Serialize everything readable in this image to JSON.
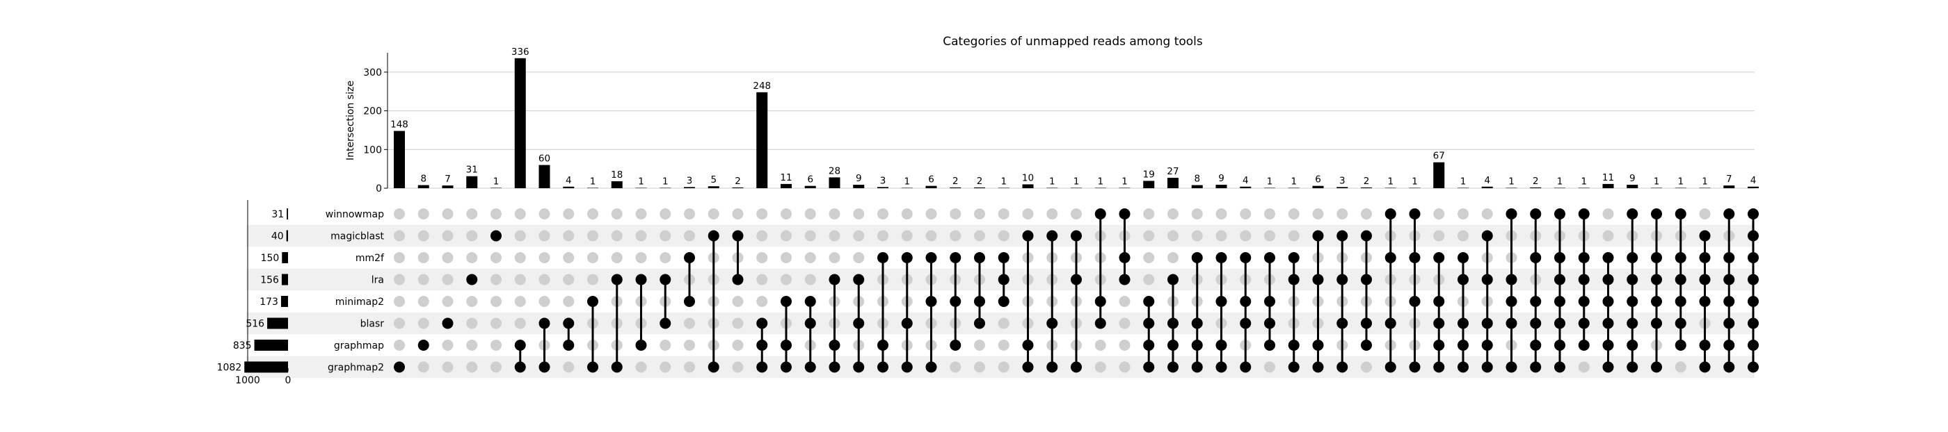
{
  "chart_data": {
    "type": "upset",
    "title": "Categories of unmapped reads among tools",
    "ylabel": "Intersection size",
    "ylim": [
      0,
      350
    ],
    "yticks": [
      0,
      100,
      200,
      300
    ],
    "set_size_ticks": [
      1000,
      0
    ],
    "grid": true,
    "sets": [
      {
        "name": "winnowmap",
        "size": 31
      },
      {
        "name": "magicblast",
        "size": 40
      },
      {
        "name": "mm2f",
        "size": 150
      },
      {
        "name": "lra",
        "size": 156
      },
      {
        "name": "minimap2",
        "size": 173
      },
      {
        "name": "blasr",
        "size": 516
      },
      {
        "name": "graphmap",
        "size": 835
      },
      {
        "name": "graphmap2",
        "size": 1082
      }
    ],
    "intersections": [
      {
        "sets": [
          "graphmap2"
        ],
        "size": 148
      },
      {
        "sets": [
          "graphmap"
        ],
        "size": 8
      },
      {
        "sets": [
          "blasr"
        ],
        "size": 7
      },
      {
        "sets": [
          "lra"
        ],
        "size": 31
      },
      {
        "sets": [
          "magicblast"
        ],
        "size": 1
      },
      {
        "sets": [
          "graphmap",
          "graphmap2"
        ],
        "size": 336
      },
      {
        "sets": [
          "blasr",
          "graphmap2"
        ],
        "size": 60
      },
      {
        "sets": [
          "blasr",
          "graphmap"
        ],
        "size": 4
      },
      {
        "sets": [
          "minimap2",
          "graphmap2"
        ],
        "size": 1
      },
      {
        "sets": [
          "lra",
          "graphmap2"
        ],
        "size": 18
      },
      {
        "sets": [
          "lra",
          "graphmap"
        ],
        "size": 1
      },
      {
        "sets": [
          "lra",
          "blasr"
        ],
        "size": 1
      },
      {
        "sets": [
          "mm2f",
          "minimap2"
        ],
        "size": 3
      },
      {
        "sets": [
          "magicblast",
          "graphmap2"
        ],
        "size": 5
      },
      {
        "sets": [
          "magicblast",
          "lra"
        ],
        "size": 2
      },
      {
        "sets": [
          "blasr",
          "graphmap",
          "graphmap2"
        ],
        "size": 248
      },
      {
        "sets": [
          "minimap2",
          "graphmap",
          "graphmap2"
        ],
        "size": 11
      },
      {
        "sets": [
          "minimap2",
          "blasr",
          "graphmap2"
        ],
        "size": 6
      },
      {
        "sets": [
          "lra",
          "graphmap",
          "graphmap2"
        ],
        "size": 28
      },
      {
        "sets": [
          "lra",
          "blasr",
          "graphmap2"
        ],
        "size": 9
      },
      {
        "sets": [
          "mm2f",
          "graphmap",
          "graphmap2"
        ],
        "size": 3
      },
      {
        "sets": [
          "mm2f",
          "blasr",
          "graphmap2"
        ],
        "size": 1
      },
      {
        "sets": [
          "mm2f",
          "minimap2",
          "graphmap2"
        ],
        "size": 6
      },
      {
        "sets": [
          "mm2f",
          "minimap2",
          "graphmap"
        ],
        "size": 2
      },
      {
        "sets": [
          "mm2f",
          "minimap2",
          "blasr"
        ],
        "size": 2
      },
      {
        "sets": [
          "mm2f",
          "lra",
          "minimap2"
        ],
        "size": 1
      },
      {
        "sets": [
          "magicblast",
          "graphmap",
          "graphmap2"
        ],
        "size": 10
      },
      {
        "sets": [
          "magicblast",
          "blasr",
          "graphmap2"
        ],
        "size": 1
      },
      {
        "sets": [
          "magicblast",
          "lra",
          "graphmap2"
        ],
        "size": 1
      },
      {
        "sets": [
          "winnowmap",
          "minimap2",
          "blasr"
        ],
        "size": 1
      },
      {
        "sets": [
          "winnowmap",
          "mm2f",
          "lra"
        ],
        "size": 1
      },
      {
        "sets": [
          "minimap2",
          "blasr",
          "graphmap",
          "graphmap2"
        ],
        "size": 19
      },
      {
        "sets": [
          "lra",
          "blasr",
          "graphmap",
          "graphmap2"
        ],
        "size": 27
      },
      {
        "sets": [
          "mm2f",
          "blasr",
          "graphmap",
          "graphmap2"
        ],
        "size": 8
      },
      {
        "sets": [
          "mm2f",
          "minimap2",
          "graphmap",
          "graphmap2"
        ],
        "size": 9
      },
      {
        "sets": [
          "mm2f",
          "minimap2",
          "blasr",
          "graphmap2"
        ],
        "size": 4
      },
      {
        "sets": [
          "mm2f",
          "minimap2",
          "blasr",
          "graphmap"
        ],
        "size": 1
      },
      {
        "sets": [
          "mm2f",
          "lra",
          "graphmap",
          "graphmap2"
        ],
        "size": 1
      },
      {
        "sets": [
          "magicblast",
          "lra",
          "graphmap",
          "graphmap2"
        ],
        "size": 6
      },
      {
        "sets": [
          "magicblast",
          "lra",
          "blasr",
          "graphmap2"
        ],
        "size": 3
      },
      {
        "sets": [
          "magicblast",
          "lra",
          "blasr",
          "graphmap"
        ],
        "size": 2
      },
      {
        "sets": [
          "winnowmap",
          "mm2f",
          "blasr",
          "graphmap2"
        ],
        "size": 1
      },
      {
        "sets": [
          "winnowmap",
          "mm2f",
          "minimap2",
          "graphmap2"
        ],
        "size": 1
      },
      {
        "sets": [
          "mm2f",
          "minimap2",
          "blasr",
          "graphmap",
          "graphmap2"
        ],
        "size": 67
      },
      {
        "sets": [
          "mm2f",
          "lra",
          "blasr",
          "graphmap",
          "graphmap2"
        ],
        "size": 1
      },
      {
        "sets": [
          "magicblast",
          "lra",
          "blasr",
          "graphmap",
          "graphmap2"
        ],
        "size": 4
      },
      {
        "sets": [
          "winnowmap",
          "lra",
          "minimap2",
          "blasr",
          "graphmap2"
        ],
        "size": 1
      },
      {
        "sets": [
          "winnowmap",
          "mm2f",
          "minimap2",
          "blasr",
          "graphmap",
          "graphmap2"
        ],
        "size": 2
      },
      {
        "sets": [
          "winnowmap",
          "mm2f",
          "lra",
          "minimap2",
          "blasr",
          "graphmap",
          "graphmap2"
        ],
        "size": 1
      },
      {
        "sets": [
          "winnowmap",
          "mm2f",
          "lra",
          "minimap2",
          "blasr",
          "graphmap"
        ],
        "size": 1
      },
      {
        "sets": [
          "mm2f",
          "lra",
          "minimap2",
          "blasr",
          "graphmap",
          "graphmap2"
        ],
        "size": 11
      },
      {
        "sets": [
          "winnowmap",
          "mm2f",
          "lra",
          "minimap2",
          "blasr",
          "graphmap",
          "graphmap2"
        ],
        "size": 9
      },
      {
        "sets": [
          "winnowmap",
          "mm2f",
          "lra",
          "minimap2",
          "blasr",
          "graphmap2"
        ],
        "size": 1
      },
      {
        "sets": [
          "winnowmap",
          "mm2f",
          "lra",
          "minimap2",
          "blasr",
          "graphmap"
        ],
        "size": 1
      },
      {
        "sets": [
          "magicblast",
          "mm2f",
          "lra",
          "minimap2",
          "graphmap",
          "graphmap2"
        ],
        "size": 1
      },
      {
        "sets": [
          "winnowmap",
          "mm2f",
          "lra",
          "minimap2",
          "blasr",
          "graphmap",
          "graphmap2"
        ],
        "size": 7
      },
      {
        "sets": [
          "winnowmap",
          "magicblast",
          "mm2f",
          "lra",
          "minimap2",
          "blasr",
          "graphmap",
          "graphmap2"
        ],
        "size": 4
      }
    ]
  }
}
